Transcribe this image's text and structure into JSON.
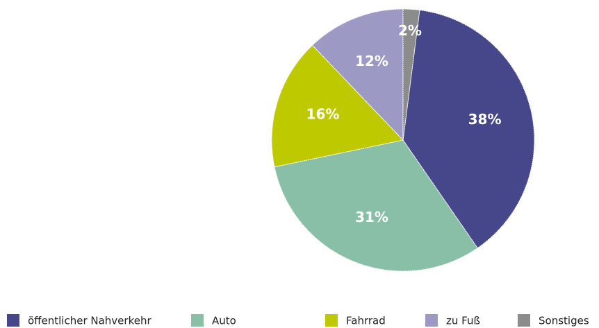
{
  "chart_data": {
    "type": "pie",
    "categories": [
      "öffentlicher Nahverkehr",
      "Auto",
      "Fahrrad",
      "zu Fuß",
      "Sonstiges"
    ],
    "values": [
      38,
      31,
      16,
      12,
      2
    ],
    "value_labels": [
      "38%",
      "31%",
      "16%",
      "12%",
      "2%"
    ],
    "colors": [
      "#46468a",
      "#88bfa6",
      "#bfc900",
      "#9d99c5",
      "#8c8c8c"
    ],
    "legend": "bottom"
  }
}
